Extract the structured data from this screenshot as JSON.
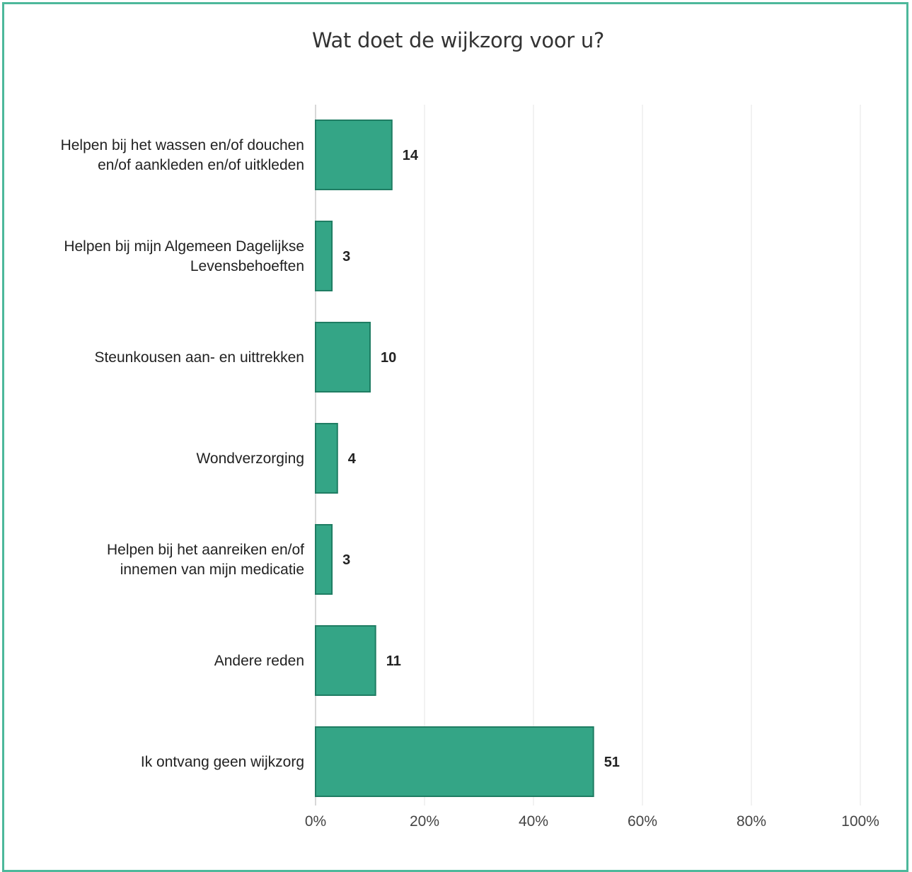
{
  "chart_data": {
    "type": "bar",
    "orientation": "horizontal",
    "title": "Wat doet de wijkzorg voor u?",
    "categories": [
      [
        "Helpen bij het wassen en/of douchen",
        "en/of aankleden en/of uitkleden"
      ],
      [
        "Helpen bij mijn Algemeen Dagelijkse",
        "Levensbehoeften"
      ],
      [
        "Steunkousen aan- en uittrekken"
      ],
      [
        "Wondverzorging"
      ],
      [
        "Helpen bij het aanreiken en/of",
        "innemen van mijn medicatie"
      ],
      [
        "Andere reden"
      ],
      [
        "Ik ontvang geen wijkzorg"
      ]
    ],
    "values": [
      14,
      3,
      10,
      4,
      3,
      11,
      51
    ],
    "value_labels": [
      "14",
      "3",
      "10",
      "4",
      "3",
      "11",
      "51"
    ],
    "x_unit": "percent",
    "xlim": [
      0,
      100
    ],
    "x_ticks": [
      "0%",
      "20%",
      "40%",
      "60%",
      "80%",
      "100%"
    ],
    "x_tick_values": [
      0,
      20,
      40,
      60,
      80,
      100
    ],
    "grid": true,
    "legend": "none",
    "colors": {
      "bar_fill": "#34a586",
      "bar_stroke": "#1f7d63",
      "frame": "#4db89b",
      "grid": "#e6e6e6",
      "axis": "#cccccc"
    }
  }
}
